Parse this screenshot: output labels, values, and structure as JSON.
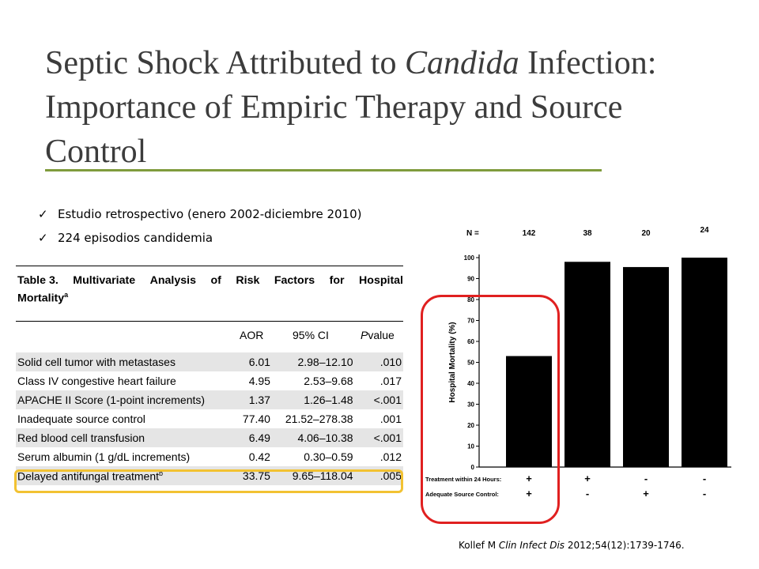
{
  "slide": {
    "title_lines": [
      "Septic Shock Attributed to ",
      "Candida",
      " Infection:",
      "Importance of Empiric Therapy and Source",
      "Control"
    ],
    "bullets": [
      "Estudio retrospectivo (enero 2002-diciembre 2010)",
      "224 episodios candidemia"
    ],
    "citation": {
      "author": "Kollef M ",
      "journal": "Clin Infect Dis",
      "rest": " 2012;54(12):1739-1746."
    },
    "accent_color": "#7f9b3c",
    "highlight_color": "#f2c232",
    "circle_color": "#e02020"
  },
  "table": {
    "title_words": [
      "Table 3.",
      "Multivariate",
      "Analysis",
      "of",
      "Risk",
      "Factors",
      "for",
      "Hospital"
    ],
    "title_line2": "Mortality",
    "title_sup": "a",
    "columns": [
      "AOR",
      "95% CI",
      "P",
      " value"
    ],
    "rows": [
      {
        "factor": "Solid cell tumor with metastases",
        "sup": "",
        "aor": "6.01",
        "ci": "2.98–12.10",
        "p": ".010"
      },
      {
        "factor": "Class IV congestive heart failure",
        "sup": "",
        "aor": "4.95",
        "ci": "2.53–9.68",
        "p": ".017"
      },
      {
        "factor": "APACHE II Score (1-point increments)",
        "sup": "",
        "aor": "1.37",
        "ci": "1.26–1.48",
        "p": "<.001"
      },
      {
        "factor": "Inadequate source control",
        "sup": "",
        "aor": "77.40",
        "ci": "21.52–278.38",
        "p": ".001"
      },
      {
        "factor": "Red blood cell transfusion",
        "sup": "",
        "aor": "6.49",
        "ci": "4.06–10.38",
        "p": "<.001"
      },
      {
        "factor": "Serum albumin (1 g/dL increments)",
        "sup": "",
        "aor": "0.42",
        "ci": "0.30–0.59",
        "p": ".012"
      },
      {
        "factor": "Delayed antifungal treatment",
        "sup": "b",
        "aor": "33.75",
        "ci": "9.65–118.04",
        "p": ".005"
      }
    ]
  },
  "chart_data": {
    "type": "bar",
    "n_label": "N =",
    "n_values": [
      "142",
      "38",
      "20",
      "24"
    ],
    "values": [
      53,
      98,
      95.5,
      100
    ],
    "ylabel": "Hospital Mortality (%)",
    "ylim": [
      0,
      100
    ],
    "yticks": [
      "0",
      "10",
      "20",
      "30",
      "40",
      "50",
      "60",
      "70",
      "80",
      "90",
      "100"
    ],
    "row_labels": [
      "Treatment within 24 Hours:",
      "Adequate Source Control:"
    ],
    "treatment": [
      "+",
      "+",
      "-",
      "-"
    ],
    "source_control": [
      "+",
      "-",
      "+",
      "-"
    ],
    "bar_color": "#000000"
  }
}
